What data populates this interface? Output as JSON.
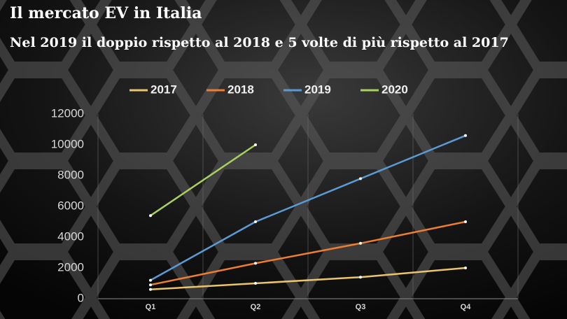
{
  "chart_data": {
    "type": "line",
    "title": "Il mercato EV in Italia",
    "subtitle": "Nel 2019 il doppio rispetto al 2018 e 5 volte di più rispetto al 2017",
    "categories": [
      "Q1",
      "Q2",
      "Q3",
      "Q4"
    ],
    "series": [
      {
        "name": "2017",
        "color": "#e9c46a",
        "values": [
          600,
          1000,
          1400,
          2000
        ]
      },
      {
        "name": "2018",
        "color": "#ed7d31",
        "values": [
          900,
          2300,
          3600,
          5000
        ]
      },
      {
        "name": "2019",
        "color": "#5b9bd5",
        "values": [
          1200,
          5000,
          7800,
          10600
        ]
      },
      {
        "name": "2020",
        "color": "#a9d15e",
        "values": [
          5400,
          10000,
          null,
          null
        ]
      }
    ],
    "ylim": [
      0,
      12000
    ],
    "yticks": [
      0,
      2000,
      4000,
      6000,
      8000,
      10000,
      12000
    ],
    "legend": "top"
  }
}
